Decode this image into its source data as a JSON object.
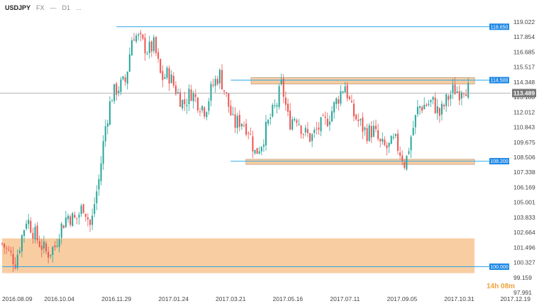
{
  "header": {
    "symbol": "USDJPY",
    "provider": "FX",
    "separator": "—",
    "timeframe": "D1",
    "more": "..."
  },
  "timer": "14h 08m",
  "colors": {
    "up": "#26a69a",
    "down": "#ef5350",
    "zone": "#f8c898",
    "level_line": "#2aa6e8",
    "level_label_bg": "#1e88e5",
    "price_line": "#9e9e9e",
    "price_label_bg": "#777777"
  },
  "chart_data": {
    "type": "candlestick",
    "y_ticks": [
      "119.022",
      "117.854",
      "116.685",
      "115.517",
      "114.348",
      "113.180",
      "112.012",
      "110.843",
      "109.675",
      "108.506",
      "107.338",
      "106.169",
      "105.001",
      "103.833",
      "102.664",
      "101.496",
      "100.327",
      "99.159",
      "97.991"
    ],
    "ylim": [
      97.991,
      119.022
    ],
    "x_ticks": [
      "2016.08.09",
      "2016.10.04",
      "2016.11.29",
      "2017.01.24",
      "2017.03.21",
      "2017.05.16",
      "2017.07.11",
      "2017.09.05",
      "2017.10.31",
      "2017.12.19"
    ],
    "current_price": "113.489",
    "levels": [
      {
        "label": "118.650",
        "value": 118.65,
        "from_date": "2016.11.29"
      },
      {
        "label": "114.500",
        "value": 114.5,
        "from_date": "2017.03.21"
      },
      {
        "label": "108.200",
        "value": 108.2,
        "from_date": "2017.03.21"
      },
      {
        "label": "100.000",
        "value": 100.0,
        "from_date": "2016.08.09"
      }
    ],
    "zones": [
      {
        "y_from": 114.2,
        "y_to": 114.7,
        "from_date": "2017.04.10",
        "to_date": "2017.11.15"
      },
      {
        "y_from": 107.95,
        "y_to": 108.35,
        "from_date": "2017.04.05",
        "to_date": "2017.11.15"
      },
      {
        "y_from": 99.5,
        "y_to": 102.2,
        "from_date": "2016.08.09",
        "to_date": "2017.11.15"
      }
    ],
    "close_path": [
      [
        "2016.08.09",
        101.8
      ],
      [
        "2016.08.22",
        100.4
      ],
      [
        "2016.09.02",
        103.8
      ],
      [
        "2016.09.12",
        102.2
      ],
      [
        "2016.09.22",
        101.0
      ],
      [
        "2016.09.30",
        101.6
      ],
      [
        "2016.10.04",
        102.8
      ],
      [
        "2016.10.12",
        104.0
      ],
      [
        "2016.10.20",
        103.6
      ],
      [
        "2016.10.28",
        104.8
      ],
      [
        "2016.11.04",
        103.0
      ],
      [
        "2016.11.08",
        105.2
      ],
      [
        "2016.11.12",
        106.8
      ],
      [
        "2016.11.18",
        110.8
      ],
      [
        "2016.11.24",
        113.2
      ],
      [
        "2016.11.29",
        113.8
      ],
      [
        "2016.12.08",
        114.4
      ],
      [
        "2016.12.15",
        118.2
      ],
      [
        "2016.12.22",
        117.6
      ],
      [
        "2016.12.30",
        116.8
      ],
      [
        "2017.01.05",
        117.2
      ],
      [
        "2017.01.12",
        114.6
      ],
      [
        "2017.01.19",
        115.0
      ],
      [
        "2017.01.26",
        113.8
      ],
      [
        "2017.02.03",
        112.6
      ],
      [
        "2017.02.10",
        113.6
      ],
      [
        "2017.02.17",
        112.8
      ],
      [
        "2017.02.24",
        112.2
      ],
      [
        "2017.03.03",
        114.0
      ],
      [
        "2017.03.10",
        115.0
      ],
      [
        "2017.03.16",
        113.4
      ],
      [
        "2017.03.24",
        111.0
      ],
      [
        "2017.03.31",
        111.4
      ],
      [
        "2017.04.07",
        110.8
      ],
      [
        "2017.04.14",
        108.8
      ],
      [
        "2017.04.20",
        109.6
      ],
      [
        "2017.04.28",
        111.4
      ],
      [
        "2017.05.05",
        112.6
      ],
      [
        "2017.05.10",
        114.2
      ],
      [
        "2017.05.17",
        111.2
      ],
      [
        "2017.05.24",
        111.8
      ],
      [
        "2017.06.01",
        110.4
      ],
      [
        "2017.06.08",
        110.0
      ],
      [
        "2017.06.15",
        110.8
      ],
      [
        "2017.06.22",
        111.2
      ],
      [
        "2017.06.30",
        112.4
      ],
      [
        "2017.07.07",
        113.6
      ],
      [
        "2017.07.11",
        114.2
      ],
      [
        "2017.07.18",
        112.0
      ],
      [
        "2017.07.25",
        111.2
      ],
      [
        "2017.08.01",
        110.4
      ],
      [
        "2017.08.08",
        110.6
      ],
      [
        "2017.08.15",
        109.4
      ],
      [
        "2017.08.22",
        109.2
      ],
      [
        "2017.08.29",
        109.8
      ],
      [
        "2017.09.05",
        108.6
      ],
      [
        "2017.09.08",
        107.9
      ],
      [
        "2017.09.14",
        110.2
      ],
      [
        "2017.09.21",
        112.4
      ],
      [
        "2017.09.28",
        112.6
      ],
      [
        "2017.10.05",
        112.8
      ],
      [
        "2017.10.12",
        111.8
      ],
      [
        "2017.10.19",
        113.0
      ],
      [
        "2017.10.26",
        113.8
      ],
      [
        "2017.10.31",
        113.6
      ],
      [
        "2017.11.03",
        114.1
      ],
      [
        "2017.11.08",
        113.9
      ],
      [
        "2017.11.10",
        113.489
      ]
    ]
  }
}
